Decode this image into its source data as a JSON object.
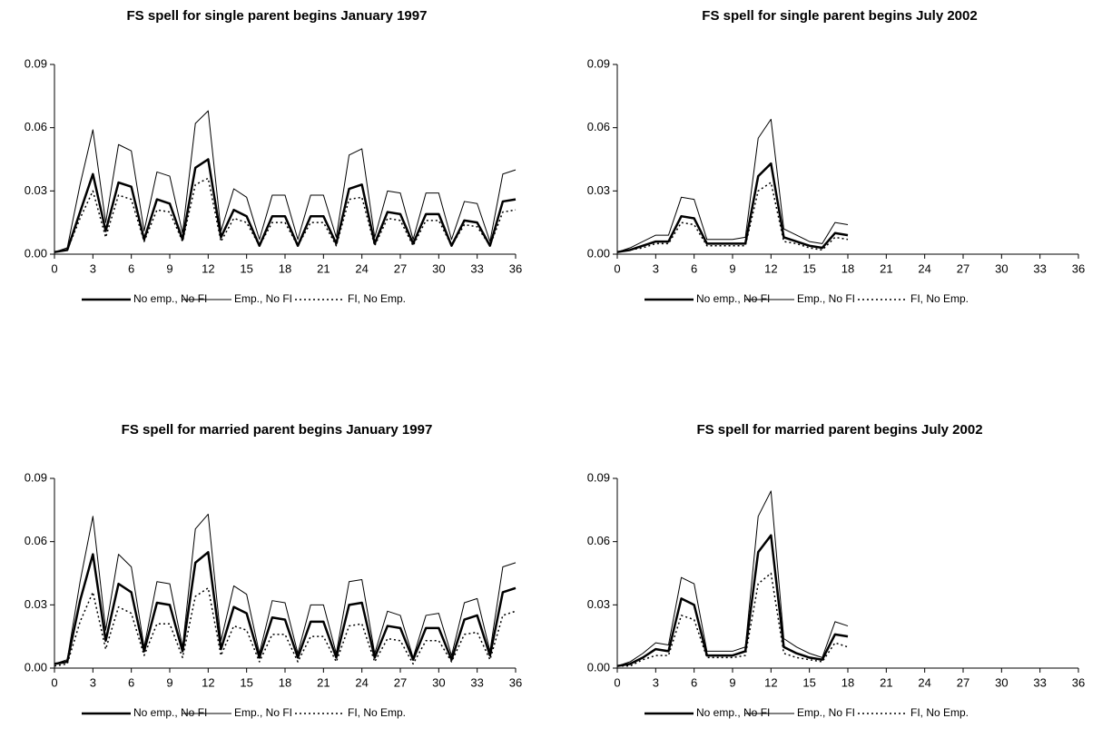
{
  "chart_data": [
    {
      "type": "line",
      "title": "FS spell for single parent begins January 1997",
      "x": [
        0,
        1,
        2,
        3,
        4,
        5,
        6,
        7,
        8,
        9,
        10,
        11,
        12,
        13,
        14,
        15,
        16,
        17,
        18,
        19,
        20,
        21,
        22,
        23,
        24,
        25,
        26,
        27,
        28,
        29,
        30,
        31,
        32,
        33,
        34,
        35,
        36
      ],
      "series": [
        {
          "name": "No emp., No FI",
          "color": "#000000",
          "line_width": 2.5,
          "dashed": false,
          "values": [
            0.001,
            0.002,
            0.02,
            0.038,
            0.011,
            0.034,
            0.032,
            0.007,
            0.026,
            0.024,
            0.007,
            0.041,
            0.045,
            0.008,
            0.021,
            0.018,
            0.004,
            0.018,
            0.018,
            0.004,
            0.018,
            0.018,
            0.005,
            0.031,
            0.033,
            0.005,
            0.02,
            0.019,
            0.005,
            0.019,
            0.019,
            0.004,
            0.016,
            0.015,
            0.004,
            0.025,
            0.026
          ]
        },
        {
          "name": "Emp., No FI",
          "color": "#000000",
          "line_width": 1,
          "dashed": false,
          "values": [
            0.001,
            0.003,
            0.033,
            0.059,
            0.015,
            0.052,
            0.049,
            0.011,
            0.039,
            0.037,
            0.01,
            0.062,
            0.068,
            0.011,
            0.031,
            0.027,
            0.007,
            0.028,
            0.028,
            0.007,
            0.028,
            0.028,
            0.008,
            0.047,
            0.05,
            0.008,
            0.03,
            0.029,
            0.007,
            0.029,
            0.029,
            0.007,
            0.025,
            0.024,
            0.006,
            0.038,
            0.04
          ]
        },
        {
          "name": "FI, No Emp.",
          "color": "#000000",
          "line_width": 1.5,
          "dashed": true,
          "values": [
            0.001,
            0.002,
            0.017,
            0.03,
            0.008,
            0.028,
            0.026,
            0.006,
            0.021,
            0.02,
            0.006,
            0.033,
            0.036,
            0.006,
            0.017,
            0.015,
            0.004,
            0.015,
            0.015,
            0.004,
            0.015,
            0.015,
            0.004,
            0.026,
            0.027,
            0.004,
            0.017,
            0.016,
            0.004,
            0.016,
            0.016,
            0.004,
            0.014,
            0.013,
            0.004,
            0.02,
            0.021
          ]
        }
      ],
      "xlim": [
        0,
        36
      ],
      "xticks": [
        0,
        3,
        6,
        9,
        12,
        15,
        18,
        21,
        24,
        27,
        30,
        33,
        36
      ],
      "ylim": [
        0,
        0.09
      ],
      "yticks": [
        {
          "value": 0,
          "label": "0.00"
        },
        {
          "value": 0.03,
          "label": "0.03"
        },
        {
          "value": 0.06,
          "label": "0.06"
        },
        {
          "value": 0.09,
          "label": "0.09"
        }
      ],
      "legend": "bottom"
    },
    {
      "type": "line",
      "title": "FS spell for single parent begins July 2002",
      "x": [
        0,
        1,
        2,
        3,
        4,
        5,
        6,
        7,
        8,
        9,
        10,
        11,
        12,
        13,
        14,
        15,
        16,
        17,
        18
      ],
      "series": [
        {
          "name": "No emp., No FI",
          "color": "#000000",
          "line_width": 2.5,
          "dashed": false,
          "values": [
            0.001,
            0.002,
            0.004,
            0.006,
            0.006,
            0.018,
            0.017,
            0.005,
            0.005,
            0.005,
            0.005,
            0.037,
            0.043,
            0.008,
            0.006,
            0.004,
            0.003,
            0.01,
            0.009
          ]
        },
        {
          "name": "Emp., No FI",
          "color": "#000000",
          "line_width": 1,
          "dashed": false,
          "values": [
            0.001,
            0.003,
            0.006,
            0.009,
            0.009,
            0.027,
            0.026,
            0.007,
            0.007,
            0.007,
            0.008,
            0.055,
            0.064,
            0.012,
            0.009,
            0.006,
            0.005,
            0.015,
            0.014
          ]
        },
        {
          "name": "FI, No Emp.",
          "color": "#000000",
          "line_width": 1.5,
          "dashed": true,
          "values": [
            0.001,
            0.002,
            0.003,
            0.005,
            0.005,
            0.015,
            0.014,
            0.004,
            0.004,
            0.004,
            0.004,
            0.03,
            0.034,
            0.006,
            0.005,
            0.003,
            0.002,
            0.008,
            0.007
          ]
        }
      ],
      "xlim": [
        0,
        36
      ],
      "xticks": [
        0,
        3,
        6,
        9,
        12,
        15,
        18,
        21,
        24,
        27,
        30,
        33,
        36
      ],
      "ylim": [
        0,
        0.09
      ],
      "yticks": [
        {
          "value": 0,
          "label": "0.00"
        },
        {
          "value": 0.03,
          "label": "0.03"
        },
        {
          "value": 0.06,
          "label": "0.06"
        },
        {
          "value": 0.09,
          "label": "0.09"
        }
      ],
      "legend": "bottom"
    },
    {
      "type": "line",
      "title": "FS spell for married parent begins January 1997",
      "x": [
        0,
        1,
        2,
        3,
        4,
        5,
        6,
        7,
        8,
        9,
        10,
        11,
        12,
        13,
        14,
        15,
        16,
        17,
        18,
        19,
        20,
        21,
        22,
        23,
        24,
        25,
        26,
        27,
        28,
        29,
        30,
        31,
        32,
        33,
        34,
        35,
        36
      ],
      "series": [
        {
          "name": "No emp., No FI",
          "color": "#000000",
          "line_width": 2.5,
          "dashed": false,
          "values": [
            0.002,
            0.003,
            0.032,
            0.054,
            0.013,
            0.04,
            0.036,
            0.008,
            0.031,
            0.03,
            0.008,
            0.05,
            0.055,
            0.009,
            0.029,
            0.026,
            0.005,
            0.024,
            0.023,
            0.005,
            0.022,
            0.022,
            0.005,
            0.03,
            0.031,
            0.005,
            0.02,
            0.019,
            0.004,
            0.019,
            0.019,
            0.004,
            0.023,
            0.025,
            0.006,
            0.036,
            0.038
          ]
        },
        {
          "name": "Emp., No FI",
          "color": "#000000",
          "line_width": 1,
          "dashed": false,
          "values": [
            0.002,
            0.004,
            0.041,
            0.072,
            0.018,
            0.054,
            0.048,
            0.01,
            0.041,
            0.04,
            0.01,
            0.066,
            0.073,
            0.013,
            0.039,
            0.035,
            0.007,
            0.032,
            0.031,
            0.007,
            0.03,
            0.03,
            0.007,
            0.041,
            0.042,
            0.007,
            0.027,
            0.025,
            0.005,
            0.025,
            0.026,
            0.006,
            0.031,
            0.033,
            0.008,
            0.048,
            0.05
          ]
        },
        {
          "name": "FI, No Emp.",
          "color": "#000000",
          "line_width": 1.5,
          "dashed": true,
          "values": [
            0.001,
            0.002,
            0.022,
            0.036,
            0.009,
            0.029,
            0.026,
            0.006,
            0.021,
            0.021,
            0.005,
            0.034,
            0.038,
            0.006,
            0.02,
            0.018,
            0.003,
            0.016,
            0.016,
            0.003,
            0.015,
            0.015,
            0.003,
            0.02,
            0.021,
            0.003,
            0.014,
            0.013,
            0.002,
            0.013,
            0.013,
            0.003,
            0.016,
            0.017,
            0.004,
            0.025,
            0.027
          ]
        }
      ],
      "xlim": [
        0,
        36
      ],
      "xticks": [
        0,
        3,
        6,
        9,
        12,
        15,
        18,
        21,
        24,
        27,
        30,
        33,
        36
      ],
      "ylim": [
        0,
        0.09
      ],
      "yticks": [
        {
          "value": 0,
          "label": "0.00"
        },
        {
          "value": 0.03,
          "label": "0.03"
        },
        {
          "value": 0.06,
          "label": "0.06"
        },
        {
          "value": 0.09,
          "label": "0.09"
        }
      ],
      "legend": "bottom"
    },
    {
      "type": "line",
      "title": "FS spell for married parent begins July 2002",
      "x": [
        0,
        1,
        2,
        3,
        4,
        5,
        6,
        7,
        8,
        9,
        10,
        11,
        12,
        13,
        14,
        15,
        16,
        17,
        18
      ],
      "series": [
        {
          "name": "No emp., No FI",
          "color": "#000000",
          "line_width": 2.5,
          "dashed": false,
          "values": [
            0.001,
            0.002,
            0.005,
            0.009,
            0.008,
            0.033,
            0.03,
            0.006,
            0.006,
            0.006,
            0.008,
            0.055,
            0.063,
            0.01,
            0.007,
            0.005,
            0.004,
            0.016,
            0.015
          ]
        },
        {
          "name": "Emp., No FI",
          "color": "#000000",
          "line_width": 1,
          "dashed": false,
          "values": [
            0.001,
            0.003,
            0.007,
            0.012,
            0.011,
            0.043,
            0.04,
            0.008,
            0.008,
            0.008,
            0.01,
            0.072,
            0.084,
            0.014,
            0.01,
            0.007,
            0.005,
            0.022,
            0.02
          ]
        },
        {
          "name": "FI, No Emp.",
          "color": "#000000",
          "line_width": 1.5,
          "dashed": true,
          "values": [
            0.001,
            0.001,
            0.004,
            0.006,
            0.006,
            0.025,
            0.023,
            0.005,
            0.005,
            0.005,
            0.006,
            0.04,
            0.045,
            0.007,
            0.005,
            0.004,
            0.003,
            0.012,
            0.01
          ]
        }
      ],
      "xlim": [
        0,
        36
      ],
      "xticks": [
        0,
        3,
        6,
        9,
        12,
        15,
        18,
        21,
        24,
        27,
        30,
        33,
        36
      ],
      "ylim": [
        0,
        0.09
      ],
      "yticks": [
        {
          "value": 0,
          "label": "0.00"
        },
        {
          "value": 0.03,
          "label": "0.03"
        },
        {
          "value": 0.06,
          "label": "0.06"
        },
        {
          "value": 0.09,
          "label": "0.09"
        }
      ],
      "legend": "bottom"
    }
  ]
}
